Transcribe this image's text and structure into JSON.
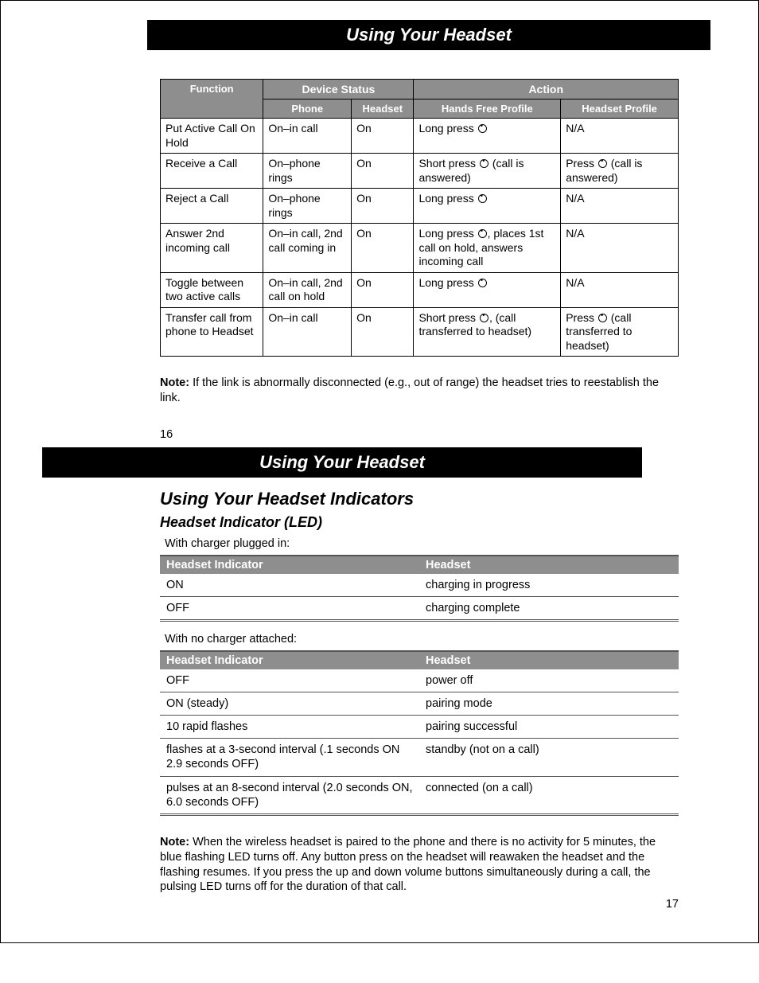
{
  "page1": {
    "header": "Using Your Headset",
    "table_headers": {
      "device_status": "Device Status",
      "action": "Action",
      "function": "Function",
      "phone": "Phone",
      "headset": "Headset",
      "hfp": "Hands Free Profile",
      "hp": "Headset Profile"
    },
    "rows": [
      {
        "function": "Put Active Call On Hold",
        "phone": "On–in call",
        "headset": "On",
        "hfp_pre": "Long press ",
        "hfp_post": "",
        "hp_pre": "N/A",
        "hp_post": ""
      },
      {
        "function": "Receive a Call",
        "phone": "On–phone rings",
        "headset": "On",
        "hfp_pre": "Short press ",
        "hfp_post": " (call is answered)",
        "hp_pre": "Press ",
        "hp_post": " (call is answered)"
      },
      {
        "function": "Reject a Call",
        "phone": "On–phone rings",
        "headset": "On",
        "hfp_pre": "Long press ",
        "hfp_post": "",
        "hp_pre": "N/A",
        "hp_post": ""
      },
      {
        "function": "Answer 2nd incoming call",
        "phone": "On–in call, 2nd call coming in",
        "headset": "On",
        "hfp_pre": "Long press ",
        "hfp_post": ", places 1st call on hold, answers incoming call",
        "hp_pre": "N/A",
        "hp_post": ""
      },
      {
        "function": "Toggle between two active calls",
        "phone": "On–in call, 2nd call on hold",
        "headset": "On",
        "hfp_pre": "Long press ",
        "hfp_post": "",
        "hp_pre": "N/A",
        "hp_post": ""
      },
      {
        "function": "Transfer call from phone to Headset",
        "phone": "On–in call",
        "headset": "On",
        "hfp_pre": "Short press ",
        "hfp_post": ", (call transferred to headset)",
        "hp_pre": "Press ",
        "hp_post": " (call transferred to headset)"
      }
    ],
    "note_label": "Note:",
    "note_text": " If the link is abnormally disconnected (e.g., out of range) the headset tries to reestablish the link.",
    "page_num": "16"
  },
  "page2": {
    "header": "Using Your Headset",
    "section_title": "Using Your Headset Indicators",
    "subsection_title": "Headset Indicator (LED)",
    "intro1": "With charger plugged in:",
    "table1_headers": {
      "c1": "Headset Indicator",
      "c2": "Headset"
    },
    "table1_rows": [
      {
        "c1": "ON",
        "c2": "charging in progress"
      },
      {
        "c1": "OFF",
        "c2": "charging complete"
      }
    ],
    "intro2": "With no charger attached:",
    "table2_headers": {
      "c1": "Headset Indicator",
      "c2": "Headset"
    },
    "table2_rows": [
      {
        "c1": "OFF",
        "c2": "power off"
      },
      {
        "c1": "ON (steady)",
        "c2": "pairing mode"
      },
      {
        "c1": "10 rapid flashes",
        "c2": "pairing successful"
      },
      {
        "c1": "flashes at a 3-second interval (.1 seconds ON 2.9 seconds OFF)",
        "c2": "standby (not on a call)"
      },
      {
        "c1": "pulses at an 8-second interval (2.0 seconds ON, 6.0 seconds OFF)",
        "c2": "connected (on a call)"
      }
    ],
    "note_label": "Note:",
    "note_text": " When the wireless headset is paired to the phone and there is no activity for 5 minutes, the blue flashing LED turns off. Any button press on the headset will reawaken the headset and the flashing resumes. If you press the up and down volume buttons simultaneously during a call, the pulsing LED turns off for the duration of that call.",
    "page_num": "17"
  },
  "colors": {
    "header_bg": "#000000",
    "header_fg": "#ffffff",
    "th_bg": "#8e8e8e",
    "border": "#000000",
    "rule": "#555555"
  }
}
